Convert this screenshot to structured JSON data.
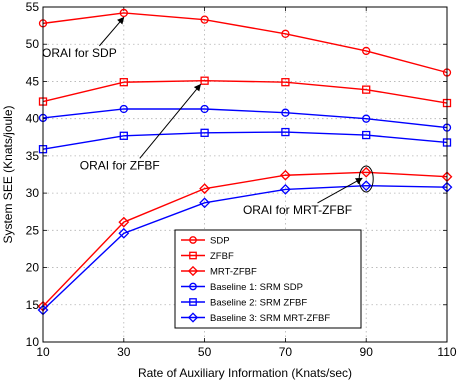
{
  "chart_data": {
    "type": "line",
    "xlabel": "Rate of Auxiliary Information (Knats/sec)",
    "ylabel": "System SEE (Knats/joule)",
    "x": [
      10,
      30,
      50,
      70,
      90,
      110
    ],
    "xlim": [
      10,
      110
    ],
    "ylim": [
      10,
      55
    ],
    "xticks": [
      "10",
      "30",
      "50",
      "70",
      "90",
      "110"
    ],
    "yticks": [
      "10",
      "15",
      "20",
      "25",
      "30",
      "35",
      "40",
      "45",
      "50",
      "55"
    ],
    "grid": true,
    "legend_position": "bottom-center",
    "series": [
      {
        "name": "SDP",
        "color": "#ff0000",
        "marker": "circle",
        "values": [
          52.8,
          54.2,
          53.3,
          51.4,
          49.1,
          46.2
        ]
      },
      {
        "name": "ZFBF",
        "color": "#ff0000",
        "marker": "square",
        "values": [
          42.3,
          44.9,
          45.1,
          44.9,
          43.9,
          42.1
        ]
      },
      {
        "name": "MRT-ZFBF",
        "color": "#ff0000",
        "marker": "diamond",
        "values": [
          14.8,
          26.1,
          30.6,
          32.4,
          32.8,
          32.2
        ]
      },
      {
        "name": "Baseline 1: SRM SDP",
        "color": "#0000ff",
        "marker": "circle",
        "values": [
          40.1,
          41.3,
          41.3,
          40.8,
          40.0,
          38.8
        ]
      },
      {
        "name": "Baseline 2: SRM ZFBF",
        "color": "#0000ff",
        "marker": "square",
        "values": [
          35.9,
          37.7,
          38.1,
          38.2,
          37.8,
          36.8
        ]
      },
      {
        "name": "Baseline 3: SRM MRT-ZFBF",
        "color": "#0000ff",
        "marker": "diamond",
        "values": [
          14.3,
          24.6,
          28.7,
          30.5,
          31.0,
          30.8
        ]
      }
    ],
    "annotations": [
      {
        "text": "ORAI for SDP",
        "x": 19,
        "y": 48.3,
        "arrow_to": [
          30,
          53.6
        ]
      },
      {
        "text": "ORAI for ZFBF",
        "x": 29,
        "y": 33.2,
        "arrow_to": [
          49,
          44.6
        ]
      },
      {
        "text": "ORAI for MRT-ZFBF",
        "x": 73,
        "y": 27.2,
        "arrow_to": [
          89,
          32
        ]
      }
    ]
  }
}
